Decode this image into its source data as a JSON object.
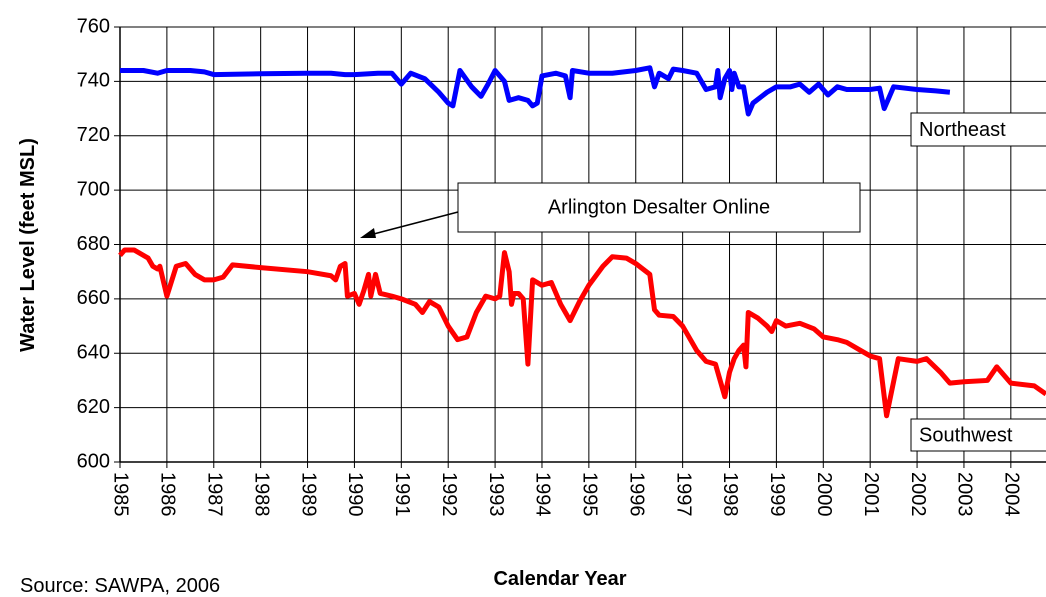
{
  "chart_data": {
    "type": "line",
    "xlabel": "Calendar Year",
    "ylabel": "Water Level (feet MSL)",
    "source": "Source:  SAWPA, 2006",
    "annotations": [
      "Arlington Desalter Online",
      "Northeast",
      "Southwest"
    ],
    "xlim": [
      1985,
      2004.75
    ],
    "ylim": [
      600,
      760
    ],
    "xticks": [
      1985,
      1986,
      1987,
      1988,
      1989,
      1990,
      1991,
      1992,
      1993,
      1994,
      1995,
      1996,
      1997,
      1998,
      1999,
      2000,
      2001,
      2002,
      2003,
      2004
    ],
    "yticks": [
      600,
      620,
      640,
      660,
      680,
      700,
      720,
      740,
      760
    ],
    "grid": true,
    "series": [
      {
        "name": "Northeast",
        "color": "#0000ff",
        "x": [
          1985,
          1985.5,
          1985.8,
          1986,
          1986.5,
          1986.8,
          1987,
          1988,
          1989,
          1989.5,
          1989.8,
          1990,
          1990.5,
          1990.8,
          1991,
          1991.2,
          1991.5,
          1991.8,
          1992,
          1992.1,
          1992.25,
          1992.5,
          1992.7,
          1992.85,
          1993,
          1993.2,
          1993.3,
          1993.5,
          1993.7,
          1993.8,
          1993.9,
          1994,
          1994.3,
          1994.5,
          1994.6,
          1994.65,
          1995,
          1995.5,
          1996,
          1996.3,
          1996.4,
          1996.5,
          1996.7,
          1996.8,
          1997,
          1997.3,
          1997.5,
          1997.7,
          1997.75,
          1997.8,
          1997.9,
          1998,
          1998.05,
          1998.1,
          1998.2,
          1998.3,
          1998.4,
          1998.5,
          1998.8,
          1999,
          1999.3,
          1999.5,
          1999.7,
          1999.9,
          2000.1,
          2000.3,
          2000.5,
          2001,
          2001.2,
          2001.3,
          2001.5,
          2002,
          2002.4,
          2002.7
        ],
        "values": [
          744,
          744,
          743,
          744,
          744,
          743.5,
          742.5,
          742.8,
          743,
          743,
          742.5,
          742.5,
          743,
          743,
          739,
          743,
          741,
          736,
          732,
          731,
          744,
          738,
          734.5,
          739,
          744,
          740,
          733,
          734,
          733,
          731,
          732,
          742,
          743,
          742,
          734,
          744,
          743,
          743,
          744,
          745,
          738,
          743,
          741,
          744.5,
          744,
          743,
          737,
          738,
          744,
          734,
          741,
          744,
          737,
          743,
          738,
          738,
          728,
          732,
          736,
          738,
          738,
          739,
          736,
          739,
          735,
          738,
          737,
          737,
          737.5,
          730,
          738,
          737,
          736.5,
          736
        ]
      },
      {
        "name": "Southwest",
        "color": "#ff0000",
        "x": [
          1985,
          1985.1,
          1985.3,
          1985.6,
          1985.7,
          1985.8,
          1985.85,
          1986,
          1986.2,
          1986.4,
          1986.6,
          1986.8,
          1987,
          1987.2,
          1987.4,
          1988,
          1989,
          1989.5,
          1989.6,
          1989.7,
          1989.8,
          1989.85,
          1990,
          1990.1,
          1990.2,
          1990.3,
          1990.35,
          1990.45,
          1990.55,
          1990.8,
          1991,
          1991.3,
          1991.45,
          1991.6,
          1991.8,
          1992,
          1992.2,
          1992.4,
          1992.6,
          1992.8,
          1993,
          1993.1,
          1993.2,
          1993.3,
          1993.35,
          1993.4,
          1993.5,
          1993.6,
          1993.7,
          1993.8,
          1994,
          1994.2,
          1994.4,
          1994.6,
          1994.8,
          1995,
          1995.3,
          1995.5,
          1995.8,
          1996,
          1996.3,
          1996.4,
          1996.5,
          1996.8,
          1997,
          1997.3,
          1997.5,
          1997.7,
          1997.9,
          1998,
          1998.1,
          1998.2,
          1998.3,
          1998.35,
          1998.4,
          1998.6,
          1998.8,
          1998.9,
          1999,
          1999.2,
          1999.5,
          1999.8,
          2000,
          2000.3,
          2000.5,
          2000.8,
          2001,
          2001.2,
          2001.35,
          2001.6,
          2002,
          2002.2,
          2002.5,
          2002.7,
          2003,
          2003.5,
          2003.7,
          2004,
          2004.5,
          2004.75
        ],
        "values": [
          676,
          678,
          678,
          675,
          672,
          671,
          672,
          661,
          672,
          673,
          669,
          667,
          667,
          668,
          672.5,
          671.5,
          670,
          668.5,
          667,
          672,
          673,
          661,
          662,
          658,
          663,
          669,
          661,
          669,
          662,
          661,
          660,
          658,
          655,
          659,
          657,
          650,
          645,
          646,
          655,
          661,
          660,
          661,
          677,
          670,
          658,
          662,
          662,
          660,
          636,
          667,
          665,
          666,
          658,
          652,
          659,
          665,
          672,
          675.5,
          675,
          673,
          669,
          656,
          654,
          653.5,
          650,
          641,
          637,
          636,
          624,
          633,
          638,
          641,
          643,
          635,
          655,
          653,
          650,
          648,
          652,
          650,
          651,
          649,
          646,
          645,
          644,
          641,
          639,
          638,
          617,
          638,
          637,
          638,
          633,
          629,
          629.5,
          630,
          635,
          629,
          628,
          625
        ]
      }
    ]
  }
}
